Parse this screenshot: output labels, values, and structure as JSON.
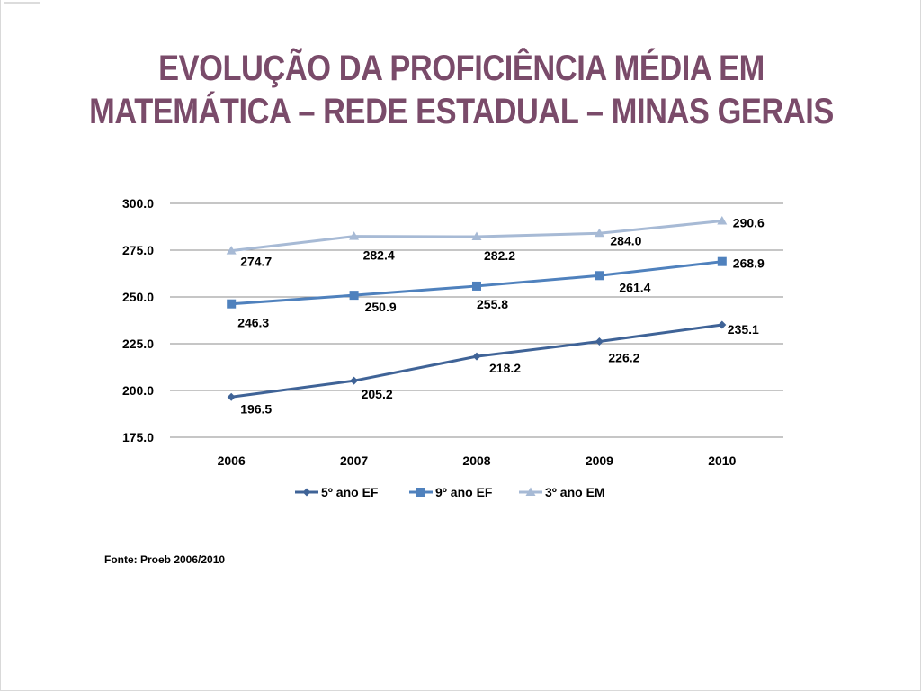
{
  "chart_data": {
    "type": "line",
    "title_lines": [
      "EVOLUÇÃO DA PROFICIÊNCIA MÉDIA EM",
      "MATEMÁTICA – REDE ESTADUAL – MINAS GERAIS"
    ],
    "xlabel": "",
    "ylabel": "",
    "categories": [
      "2006",
      "2007",
      "2008",
      "2009",
      "2010"
    ],
    "y_ticks": [
      "175.0",
      "200.0",
      "225.0",
      "250.0",
      "275.0",
      "300.0"
    ],
    "ylim": [
      175,
      300
    ],
    "grid": true,
    "legend_placement": "bottom",
    "series": [
      {
        "name": "5º ano EF",
        "color": "#3f6397",
        "marker": "diamond",
        "values": [
          196.5,
          205.2,
          218.2,
          226.2,
          235.1
        ],
        "labels": [
          "196.5",
          "205.2",
          "218.2",
          "226.2",
          "235.1"
        ]
      },
      {
        "name": "9º ano EF",
        "color": "#4f81bd",
        "marker": "square",
        "values": [
          246.3,
          250.9,
          255.8,
          261.4,
          268.9
        ],
        "labels": [
          "246.3",
          "250.9",
          "255.8",
          "261.4",
          "268.9"
        ]
      },
      {
        "name": "3º ano EM",
        "color": "#a7bad5",
        "marker": "triangle",
        "values": [
          274.7,
          282.4,
          282.2,
          284.0,
          290.6
        ],
        "labels": [
          "274.7",
          "282.4",
          "282.2",
          "284.0",
          "290.6"
        ]
      }
    ]
  },
  "source_note": "Fonte: Proeb 2006/2010"
}
